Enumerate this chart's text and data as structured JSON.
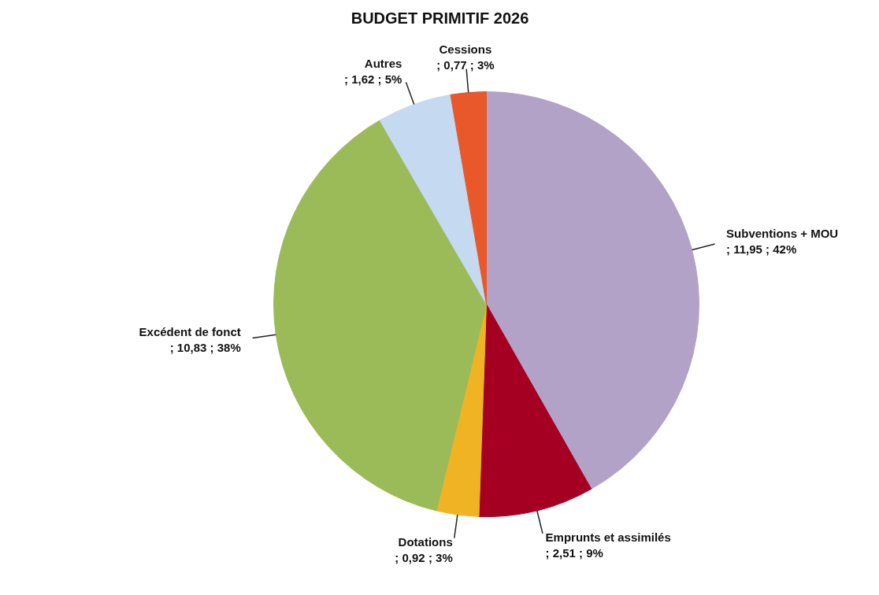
{
  "chart_data": {
    "type": "pie",
    "title": "BUDGET PRIMITIF 2026",
    "categories": [
      "Subventions + MOU",
      "Emprunts et assimilés",
      "Dotations",
      "Excédent de fonct",
      "Autres",
      "Cessions"
    ],
    "values": [
      11.95,
      2.51,
      0.92,
      10.83,
      1.62,
      0.77
    ],
    "value_labels": [
      "; 11,95 ; 42%",
      "; 2,51 ; 9%",
      "; 0,92 ; 3%",
      "; 10,83 ; 38%",
      "; 1,62 ; 5%",
      "; 0,77 ; 3%"
    ],
    "colors": [
      "#b3a2c7",
      "#a50021",
      "#f0b323",
      "#9bbb59",
      "#c5d9f1",
      "#e8582a"
    ],
    "legend": false
  }
}
